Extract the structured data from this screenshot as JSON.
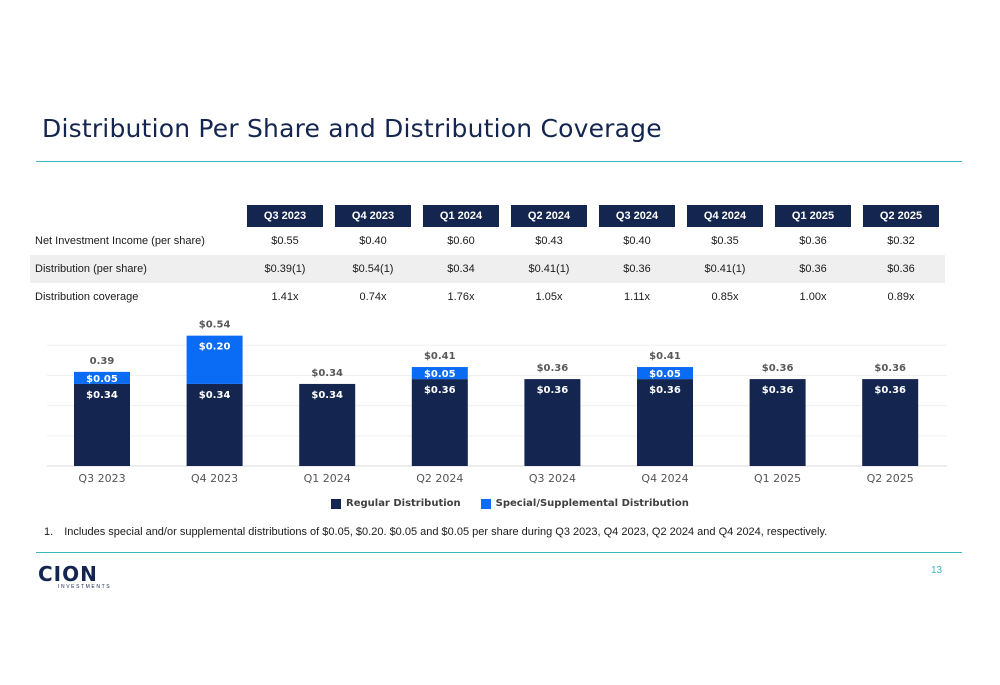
{
  "title": "Distribution Per Share and Distribution Coverage",
  "table": {
    "columns": [
      "Q3 2023",
      "Q4 2023",
      "Q1 2024",
      "Q2 2024",
      "Q3 2024",
      "Q4 2024",
      "Q1 2025",
      "Q2 2025"
    ],
    "rows": [
      {
        "label": "Net Investment Income (per share)",
        "values": [
          "$0.55",
          "$0.40",
          "$0.60",
          "$0.43",
          "$0.40",
          "$0.35",
          "$0.36",
          "$0.32"
        ]
      },
      {
        "label": "Distribution (per share)",
        "values": [
          "$0.39(1)",
          "$0.54(1)",
          "$0.34",
          "$0.41(1)",
          "$0.36",
          "$0.41(1)",
          "$0.36",
          "$0.36"
        ]
      },
      {
        "label": "Distribution coverage",
        "values": [
          "1.41x",
          "0.74x",
          "1.76x",
          "1.05x",
          "1.11x",
          "0.85x",
          "1.00x",
          "0.89x"
        ]
      }
    ]
  },
  "chart_data": {
    "type": "bar",
    "stacked": true,
    "categories": [
      "Q3 2023",
      "Q4 2023",
      "Q1 2024",
      "Q2 2024",
      "Q3 2024",
      "Q4 2024",
      "Q1 2025",
      "Q2 2025"
    ],
    "series": [
      {
        "name": "Regular Distribution",
        "values": [
          0.34,
          0.34,
          0.34,
          0.36,
          0.36,
          0.36,
          0.36,
          0.36
        ],
        "labels": [
          "$0.34",
          "$0.34",
          "$0.34",
          "$0.36",
          "$0.36",
          "$0.36",
          "$0.36",
          "$0.36"
        ],
        "color": "#14264f"
      },
      {
        "name": "Special/Supplemental Distribution",
        "values": [
          0.05,
          0.2,
          0,
          0.05,
          0,
          0.05,
          0,
          0
        ],
        "labels": [
          "$0.05",
          "$0.20",
          "",
          "$0.05",
          "",
          "$0.05",
          "",
          ""
        ],
        "color": "#0a6cf5"
      }
    ],
    "total_labels": [
      "0.39",
      "$0.54",
      "$0.34",
      "$0.41",
      "$0.36",
      "$0.41",
      "$0.36",
      "$0.36"
    ],
    "ylim": [
      0,
      0.6
    ],
    "legend": "bottom-center"
  },
  "footnote": {
    "number": "1.",
    "text": "Includes special and/or supplemental distributions of $0.05, $0.20. $0.05 and $0.05 per share during Q3 2023, Q4 2023, Q2 2024 and Q4 2024, respectively."
  },
  "brand": {
    "name": "CION",
    "sub": "INVESTMENTS"
  },
  "page_number": "13",
  "colors": {
    "navy": "#14264f",
    "blue": "#0a6cf5",
    "teal": "#3bb7bf"
  }
}
